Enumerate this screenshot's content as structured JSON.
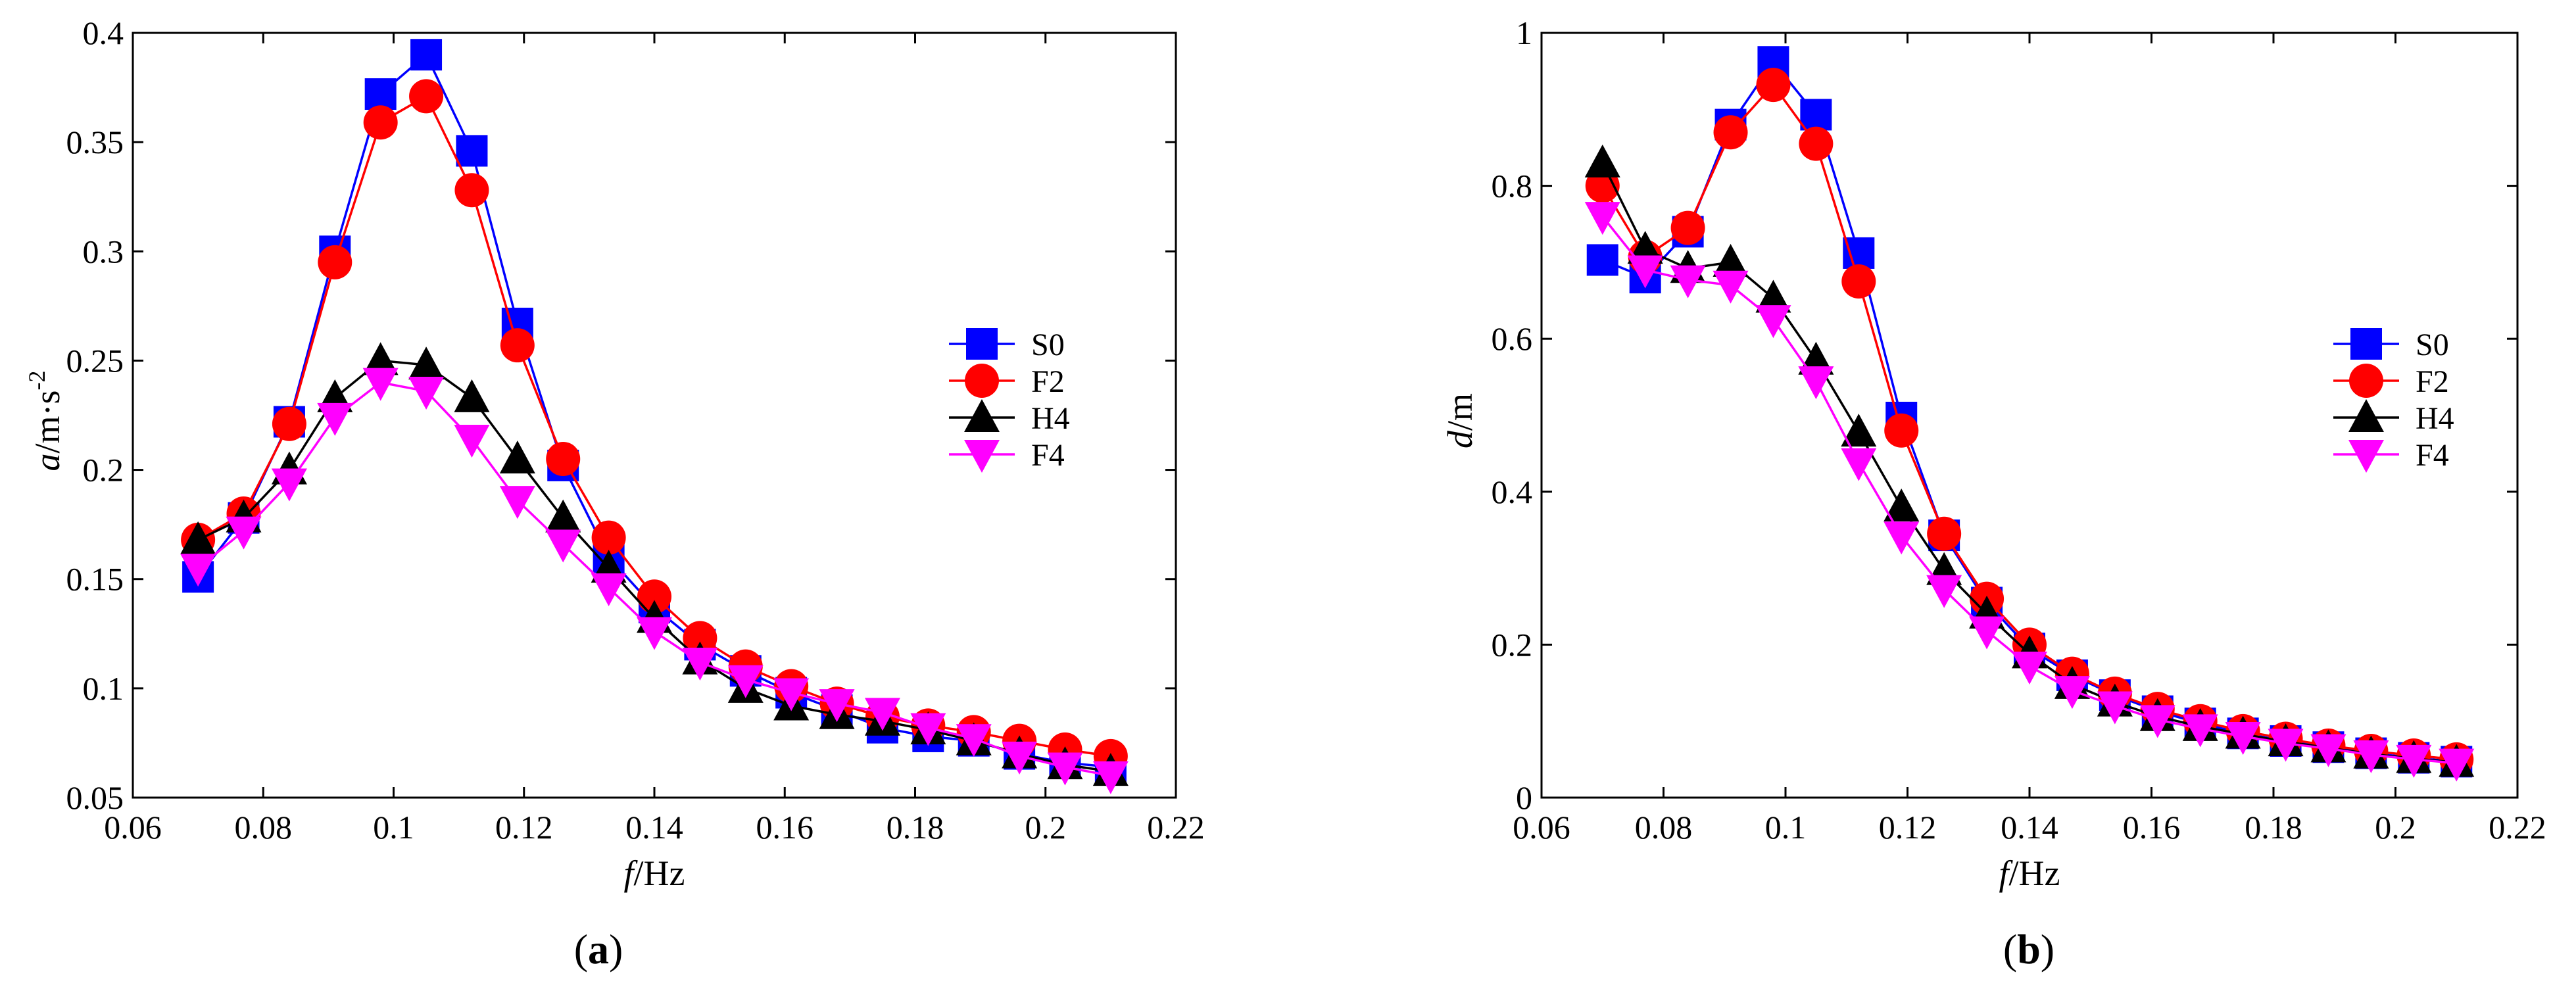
{
  "chart_data": [
    {
      "type": "line",
      "panel": "a",
      "caption": "(a)",
      "caption_parts": {
        "open": "(",
        "letter": "a",
        "close": ")"
      },
      "xlabel": {
        "var": "f",
        "unit": "/Hz"
      },
      "ylabel": {
        "var": "a",
        "unit": "/m·s",
        "sup": "-2"
      },
      "xlim": [
        0.06,
        0.22
      ],
      "ylim": [
        0.05,
        0.4
      ],
      "xticks": [
        0.06,
        0.08,
        0.1,
        0.12,
        0.14,
        0.16,
        0.18,
        0.2,
        0.22
      ],
      "xtick_labels": [
        "0.06",
        "0.08",
        "0.1",
        "0.12",
        "0.14",
        "0.16",
        "0.18",
        "0.2",
        "0.22"
      ],
      "yticks": [
        0.05,
        0.1,
        0.15,
        0.2,
        0.25,
        0.3,
        0.35,
        0.4
      ],
      "ytick_labels": [
        "0.05",
        "0.1",
        "0.15",
        "0.2",
        "0.25",
        "0.3",
        "0.35",
        "0.4"
      ],
      "x": [
        0.07,
        0.077,
        0.084,
        0.091,
        0.098,
        0.105,
        0.112,
        0.119,
        0.126,
        0.133,
        0.14,
        0.147,
        0.154,
        0.161,
        0.168,
        0.175,
        0.182,
        0.189,
        0.196,
        0.203,
        0.21
      ],
      "legend_position": "center-right",
      "series": [
        {
          "name": "S0",
          "color": "#0000ff",
          "marker": "square",
          "values": [
            0.151,
            0.178,
            0.222,
            0.3,
            0.372,
            0.39,
            0.346,
            0.267,
            0.202,
            0.16,
            0.137,
            0.12,
            0.108,
            0.098,
            0.09,
            0.082,
            0.078,
            0.076,
            0.07,
            0.066,
            0.064
          ]
        },
        {
          "name": "F2",
          "color": "#ff0000",
          "marker": "circle",
          "values": [
            0.168,
            0.18,
            0.221,
            0.295,
            0.359,
            0.371,
            0.328,
            0.257,
            0.205,
            0.169,
            0.142,
            0.123,
            0.11,
            0.101,
            0.093,
            0.087,
            0.083,
            0.08,
            0.076,
            0.072,
            0.069
          ]
        },
        {
          "name": "H4",
          "color": "#000000",
          "marker": "triangle-up",
          "values": [
            0.168,
            0.178,
            0.2,
            0.233,
            0.25,
            0.248,
            0.233,
            0.205,
            0.178,
            0.155,
            0.132,
            0.113,
            0.1,
            0.092,
            0.088,
            0.085,
            0.081,
            0.076,
            0.07,
            0.065,
            0.062
          ]
        },
        {
          "name": "F4",
          "color": "#ff00ff",
          "marker": "triangle-down",
          "values": [
            0.155,
            0.172,
            0.194,
            0.224,
            0.24,
            0.236,
            0.214,
            0.186,
            0.166,
            0.146,
            0.126,
            0.112,
            0.104,
            0.098,
            0.093,
            0.089,
            0.082,
            0.077,
            0.069,
            0.064,
            0.06
          ]
        }
      ]
    },
    {
      "type": "line",
      "panel": "b",
      "caption": "(b)",
      "caption_parts": {
        "open": "(",
        "letter": "b",
        "close": ")"
      },
      "xlabel": {
        "var": "f",
        "unit": "/Hz"
      },
      "ylabel": {
        "var": "d",
        "unit": "/m",
        "sup": ""
      },
      "xlim": [
        0.06,
        0.22
      ],
      "ylim": [
        0,
        1
      ],
      "xticks": [
        0.06,
        0.08,
        0.1,
        0.12,
        0.14,
        0.16,
        0.18,
        0.2,
        0.22
      ],
      "xtick_labels": [
        "0.06",
        "0.08",
        "0.1",
        "0.12",
        "0.14",
        "0.16",
        "0.18",
        "0.2",
        "0.22"
      ],
      "yticks": [
        0,
        0.2,
        0.4,
        0.6,
        0.8,
        1
      ],
      "ytick_labels": [
        "0",
        "0.2",
        "0.4",
        "0.6",
        "0.8",
        "1"
      ],
      "x": [
        0.07,
        0.077,
        0.084,
        0.091,
        0.098,
        0.105,
        0.112,
        0.119,
        0.126,
        0.133,
        0.14,
        0.147,
        0.154,
        0.161,
        0.168,
        0.175,
        0.182,
        0.189,
        0.196,
        0.203,
        0.21
      ],
      "legend_position": "center-right",
      "series": [
        {
          "name": "S0",
          "color": "#0000ff",
          "marker": "square",
          "values": [
            0.703,
            0.68,
            0.74,
            0.88,
            0.962,
            0.893,
            0.712,
            0.497,
            0.343,
            0.255,
            0.195,
            0.16,
            0.134,
            0.113,
            0.097,
            0.084,
            0.074,
            0.066,
            0.058,
            0.052,
            0.047
          ]
        },
        {
          "name": "F2",
          "color": "#ff0000",
          "marker": "circle",
          "values": [
            0.8,
            0.707,
            0.745,
            0.87,
            0.932,
            0.855,
            0.675,
            0.48,
            0.345,
            0.26,
            0.2,
            0.162,
            0.136,
            0.116,
            0.1,
            0.087,
            0.077,
            0.068,
            0.061,
            0.055,
            0.05
          ]
        },
        {
          "name": "H4",
          "color": "#000000",
          "marker": "triangle-up",
          "values": [
            0.83,
            0.717,
            0.692,
            0.7,
            0.653,
            0.572,
            0.478,
            0.38,
            0.297,
            0.24,
            0.188,
            0.148,
            0.125,
            0.106,
            0.093,
            0.083,
            0.073,
            0.065,
            0.057,
            0.051,
            0.046
          ]
        },
        {
          "name": "F4",
          "color": "#ff00ff",
          "marker": "triangle-down",
          "values": [
            0.76,
            0.69,
            0.677,
            0.67,
            0.625,
            0.545,
            0.438,
            0.342,
            0.272,
            0.218,
            0.172,
            0.14,
            0.12,
            0.102,
            0.09,
            0.08,
            0.071,
            0.064,
            0.056,
            0.05,
            0.045
          ]
        }
      ]
    }
  ]
}
